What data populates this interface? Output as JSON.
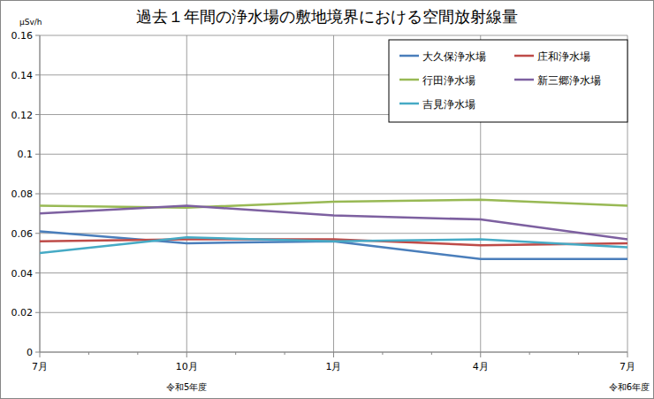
{
  "chart_data": {
    "type": "line",
    "title": "過去１年間の浄水場の敷地境界における空間放射線量",
    "y_label": "μSv/h",
    "categories": [
      "7月",
      "10月",
      "1月",
      "4月",
      "7月"
    ],
    "annotations": [
      {
        "text": "令和5年度",
        "category_index": 1
      },
      {
        "text": "令和6年度",
        "category_index": 4
      }
    ],
    "series": [
      {
        "name": "大久保浄水場",
        "color": "#4a7ebb",
        "values": [
          0.061,
          0.055,
          0.056,
          0.047,
          0.047
        ]
      },
      {
        "name": "庄和浄水場",
        "color": "#be4b48",
        "values": [
          0.056,
          0.057,
          0.057,
          0.054,
          0.055
        ]
      },
      {
        "name": "行田浄水場",
        "color": "#98b954",
        "values": [
          0.074,
          0.073,
          0.076,
          0.077,
          0.074
        ]
      },
      {
        "name": "新三郷浄水場",
        "color": "#7d60a0",
        "values": [
          0.07,
          0.074,
          0.069,
          0.067,
          0.057
        ]
      },
      {
        "name": "吉見浄水場",
        "color": "#46aac5",
        "values": [
          0.05,
          0.058,
          0.056,
          0.057,
          0.053
        ]
      }
    ],
    "ylim": [
      0,
      0.16
    ],
    "yticks": [
      0,
      0.02,
      0.04,
      0.06,
      0.08,
      0.1,
      0.12,
      0.14,
      0.16
    ],
    "grid": true,
    "legend": "top-right"
  }
}
